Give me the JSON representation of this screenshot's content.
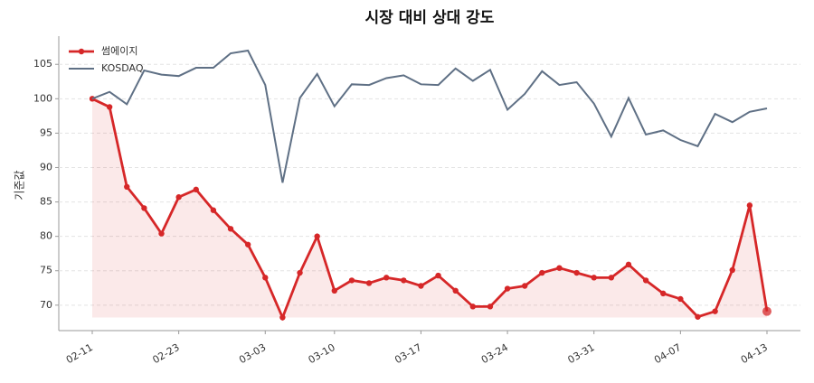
{
  "chart_data": {
    "type": "line",
    "title": "시장 대비 상대 강도",
    "y_label": "기준값",
    "categories": [
      "02-11",
      null,
      null,
      null,
      null,
      "02-23",
      null,
      null,
      null,
      null,
      "03-03",
      null,
      null,
      null,
      "03-10",
      null,
      null,
      null,
      null,
      "03-17",
      null,
      null,
      null,
      null,
      "03-24",
      null,
      null,
      null,
      null,
      "03-31",
      null,
      null,
      null,
      null,
      "04-07",
      null,
      null,
      null,
      null,
      "04-13"
    ],
    "series": [
      {
        "name": "썸에이지",
        "color": "#d62728",
        "values": [
          100,
          98.8,
          87.2,
          84.1,
          80.4,
          85.7,
          86.8,
          83.8,
          81.1,
          78.8,
          74,
          68.2,
          74.7,
          80,
          72.1,
          73.6,
          73.2,
          74,
          73.6,
          72.8,
          74.3,
          72.1,
          69.8,
          69.8,
          72.4,
          72.8,
          74.7,
          75.4,
          74.7,
          74,
          74,
          75.9,
          73.6,
          71.7,
          70.9,
          68.3,
          69.1,
          75.1,
          84.5,
          69.1
        ]
      },
      {
        "name": "KOSDAQ",
        "color": "#5f7085",
        "values": [
          100,
          101,
          99.2,
          104.1,
          103.5,
          103.3,
          104.5,
          104.5,
          106.6,
          107,
          102,
          87.8,
          100.1,
          103.6,
          98.9,
          102.1,
          102,
          103,
          103.4,
          102.1,
          102,
          104.4,
          102.6,
          104.2,
          98.4,
          100.7,
          104,
          102,
          102.4,
          99.3,
          94.5,
          100.1,
          94.8,
          95.4,
          94,
          93.1,
          97.8,
          96.6,
          98.1,
          98.6
        ]
      }
    ],
    "ylim": [
      66.3,
      109.1
    ],
    "yticks": [
      70,
      75,
      80,
      85,
      90,
      95,
      100,
      105
    ],
    "grid": true,
    "legend": "upper left"
  }
}
